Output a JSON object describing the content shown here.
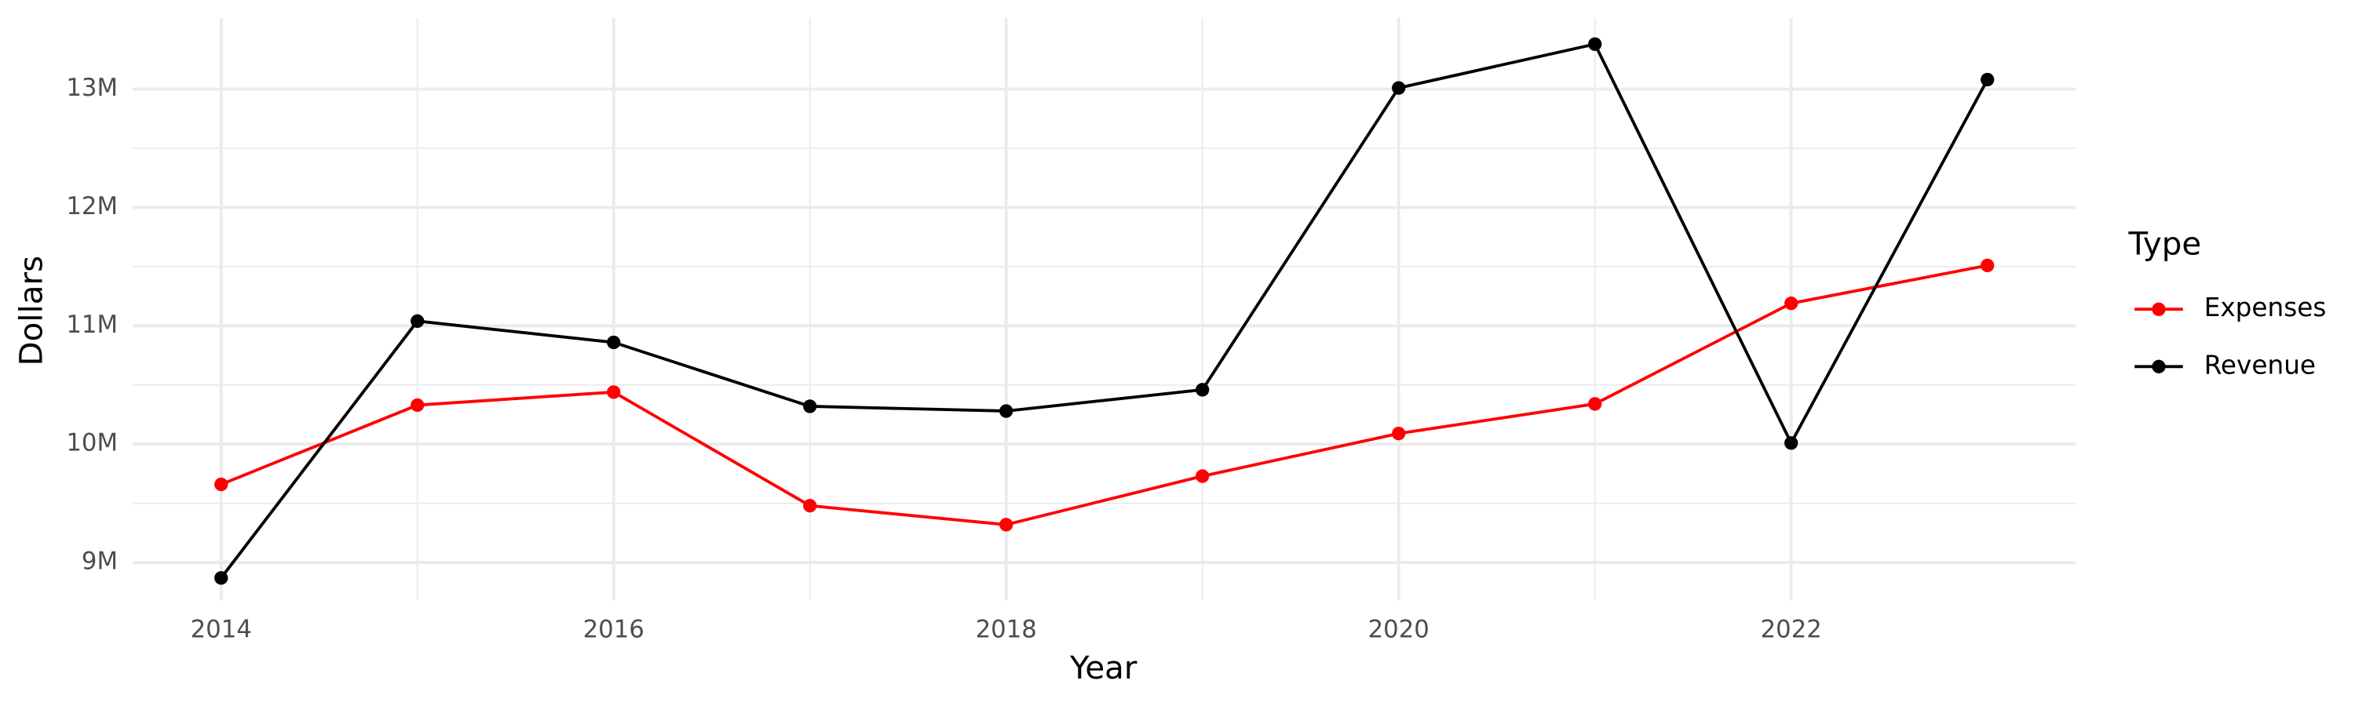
{
  "chart_data": {
    "type": "line",
    "x_label": "Year",
    "y_label": "Dollars",
    "legend_title": "Type",
    "x": [
      2014,
      2015,
      2016,
      2017,
      2018,
      2019,
      2020,
      2021,
      2022,
      2023
    ],
    "series": [
      {
        "name": "Expenses",
        "color": "#ff0000",
        "values": [
          9660000,
          10330000,
          10440000,
          9480000,
          9320000,
          9730000,
          10090000,
          10340000,
          11190000,
          11510000
        ]
      },
      {
        "name": "Revenue",
        "color": "#000000",
        "values": [
          8870000,
          11040000,
          10860000,
          10320000,
          10280000,
          10460000,
          13010000,
          13380000,
          10010000,
          13080000
        ]
      }
    ],
    "xlim": [
      2013.55,
      2023.45
    ],
    "xticks": [
      2014,
      2016,
      2018,
      2020,
      2022
    ],
    "ylim": [
      8680000,
      13600000
    ],
    "yticks": [
      {
        "value": 9000000,
        "label": "9M"
      },
      {
        "value": 10000000,
        "label": "10M"
      },
      {
        "value": 11000000,
        "label": "11M"
      },
      {
        "value": 12000000,
        "label": "12M"
      },
      {
        "value": 13000000,
        "label": "13M"
      }
    ],
    "grid": true,
    "legend": "right"
  }
}
